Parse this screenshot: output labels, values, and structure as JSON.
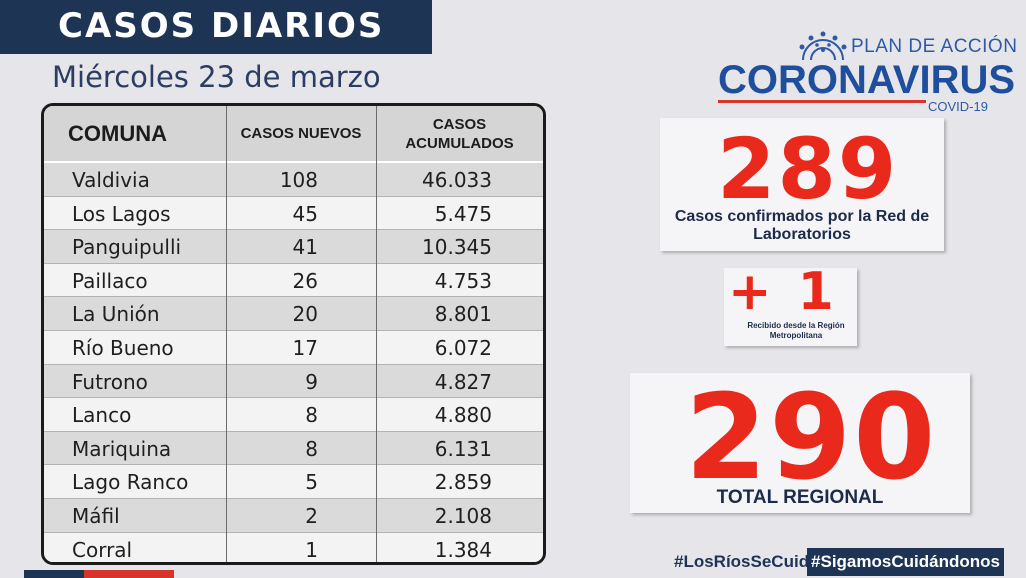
{
  "header": {
    "title": "CASOS DIARIOS",
    "date": "Miércoles 23 de marzo"
  },
  "table": {
    "headers": {
      "comuna": "COMUNA",
      "nuevos": "CASOS NUEVOS",
      "acumulados_line1": "CASOS",
      "acumulados_line2": "ACUMULADOS"
    },
    "rows": [
      {
        "comuna": "Valdivia",
        "nuevos": "108",
        "acumulados": "46.033"
      },
      {
        "comuna": "Los Lagos",
        "nuevos": "45",
        "acumulados": "5.475"
      },
      {
        "comuna": "Panguipulli",
        "nuevos": "41",
        "acumulados": "10.345"
      },
      {
        "comuna": "Paillaco",
        "nuevos": "26",
        "acumulados": "4.753"
      },
      {
        "comuna": "La Unión",
        "nuevos": "20",
        "acumulados": "8.801"
      },
      {
        "comuna": "Río Bueno",
        "nuevos": "17",
        "acumulados": "6.072"
      },
      {
        "comuna": "Futrono",
        "nuevos": "9",
        "acumulados": "4.827"
      },
      {
        "comuna": "Lanco",
        "nuevos": "8",
        "acumulados": "4.880"
      },
      {
        "comuna": "Mariquina",
        "nuevos": "8",
        "acumulados": "6.131"
      },
      {
        "comuna": "Lago Ranco",
        "nuevos": "5",
        "acumulados": "2.859"
      },
      {
        "comuna": "Máfil",
        "nuevos": "2",
        "acumulados": "2.108"
      },
      {
        "comuna": "Corral",
        "nuevos": "1",
        "acumulados": "1.384"
      }
    ]
  },
  "logo": {
    "plan": "PLAN DE ACCIÓN",
    "name": "CORONAVIRUS",
    "sub": "COVID-19",
    "icon": "sun-virus-icon"
  },
  "stats": {
    "confirmed_value": "289",
    "confirmed_label": "Casos confirmados  por la Red de Laboratorios",
    "extra_value": "+ 1",
    "extra_label": "Recibido desde la Región Metropolitana",
    "total_value": "290",
    "total_label": "TOTAL REGIONAL"
  },
  "footer": {
    "hashtag1": "#LosRíosSeCuida",
    "hashtag2": "#SigamosCuidándonos"
  },
  "colors": {
    "navy": "#1d3454",
    "red": "#e8291c",
    "background": "#e6e6ea",
    "brand_blue": "#1f4f9c"
  }
}
